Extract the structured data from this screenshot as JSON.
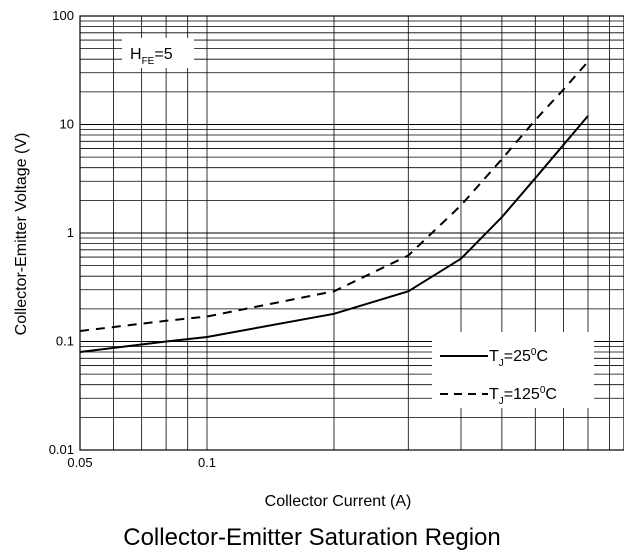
{
  "chart_data": {
    "type": "line",
    "title": "Collector-Emitter Saturation Region",
    "xlabel": "Collector Current (A)",
    "ylabel": "Collector-Emitter Voltage (V)",
    "x_scale": "log",
    "y_scale": "log",
    "xlim": [
      0.05,
      1.0
    ],
    "ylim": [
      0.01,
      100
    ],
    "x_ticks": [
      {
        "value": 0.05,
        "label": "0.05"
      },
      {
        "value": 0.1,
        "label": "0.1"
      }
    ],
    "y_ticks": [
      {
        "value": 100,
        "label": "100"
      },
      {
        "value": 10,
        "label": "10"
      },
      {
        "value": 1,
        "label": "1"
      },
      {
        "value": 0.1,
        "label": "0.1"
      },
      {
        "value": 0.01,
        "label": "0.01"
      }
    ],
    "grid": true,
    "legend_position": "bottom-right",
    "annotation": {
      "main": "H",
      "sub": "FE",
      "rest": "=5"
    },
    "series": [
      {
        "name": "TJ=25°C",
        "legend": {
          "pre": "T",
          "sub": "J",
          "mid": "=25",
          "sup": "0",
          "post": "C"
        },
        "line_style": "solid",
        "x": [
          0.05,
          0.08,
          0.1,
          0.2,
          0.3,
          0.4,
          0.5,
          0.6,
          0.7,
          0.8
        ],
        "y": [
          0.08,
          0.1,
          0.11,
          0.18,
          0.29,
          0.58,
          1.4,
          3.2,
          6.5,
          12
        ]
      },
      {
        "name": "TJ=125°C",
        "legend": {
          "pre": "T",
          "sub": "J",
          "mid": "=125",
          "sup": "0",
          "post": "C"
        },
        "line_style": "dashed",
        "x": [
          0.05,
          0.08,
          0.1,
          0.2,
          0.3,
          0.4,
          0.5,
          0.6,
          0.7,
          0.8
        ],
        "y": [
          0.125,
          0.155,
          0.17,
          0.29,
          0.62,
          1.8,
          4.8,
          11,
          21,
          38
        ]
      }
    ]
  }
}
